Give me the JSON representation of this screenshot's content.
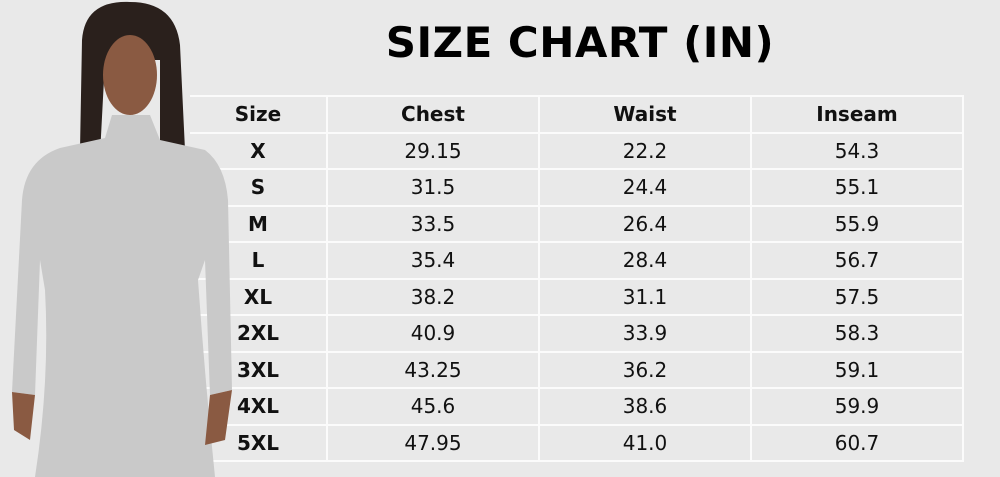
{
  "title": "SIZE CHART (IN)",
  "table": {
    "headers": [
      "Size",
      "Chest",
      "Waist",
      "Inseam"
    ],
    "rows": [
      [
        "X",
        "29.15",
        "22.2",
        "54.3"
      ],
      [
        "S",
        "31.5",
        "24.4",
        "55.1"
      ],
      [
        "M",
        "33.5",
        "26.4",
        "55.9"
      ],
      [
        "L",
        "35.4",
        "28.4",
        "56.7"
      ],
      [
        "XL",
        "38.2",
        "31.1",
        "57.5"
      ],
      [
        "2XL",
        "40.9",
        "33.9",
        "58.3"
      ],
      [
        "3XL",
        "43.25",
        "36.2",
        "59.1"
      ],
      [
        "4XL",
        "45.6",
        "38.6",
        "59.9"
      ],
      [
        "5XL",
        "47.95",
        "41.0",
        "60.7"
      ]
    ]
  },
  "colors": {
    "background": "#e9e9e9",
    "grid": "#fbfbfb",
    "garment": "#c9c9c9"
  }
}
